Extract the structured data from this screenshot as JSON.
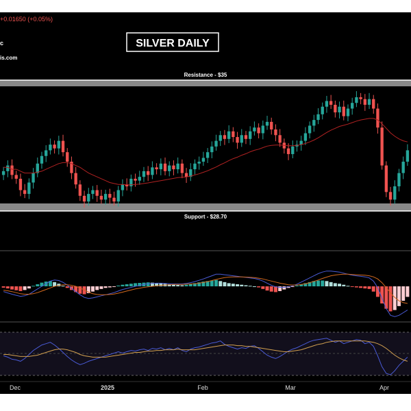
{
  "header": {
    "price_change": "+0.01650 (+0.05%)",
    "line2": "c",
    "line3": "is.com"
  },
  "title": "SILVER DAILY",
  "colors": {
    "background": "#000000",
    "up": "#26a69a",
    "down": "#ef5350",
    "zone": "#888888",
    "level_line": "#ffffff",
    "ma": "#b22222",
    "macd_line": "#4a5bd6",
    "signal_line": "#d2691e",
    "rsi": "#4a5bd6",
    "rsi_ma": "#d2a050"
  },
  "chart_data": {
    "type": "candlestick",
    "levels": [
      {
        "label": "Resistance - $35",
        "value": 35
      },
      {
        "label": "Support - $28.70",
        "value": 28.7
      }
    ],
    "price_range": [
      28.4,
      35.3
    ],
    "x_labels": [
      "Dec",
      "2025",
      "Feb",
      "Mar",
      "Apr"
    ],
    "closes": [
      30.5,
      30.8,
      30.3,
      30.1,
      29.5,
      29.3,
      29.9,
      30.4,
      30.9,
      31.3,
      31.6,
      31.9,
      31.7,
      32.1,
      31.5,
      31.0,
      30.4,
      29.8,
      29.2,
      28.9,
      29.3,
      29.5,
      29.2,
      29.0,
      29.3,
      29.1,
      28.9,
      29.5,
      29.8,
      29.7,
      30.1,
      30.0,
      30.2,
      30.5,
      30.3,
      30.7,
      30.6,
      30.9,
      30.5,
      30.8,
      30.6,
      30.9,
      30.4,
      30.2,
      30.6,
      30.9,
      31.0,
      31.2,
      31.5,
      31.8,
      32.1,
      32.4,
      32.2,
      32.6,
      32.3,
      32.0,
      32.4,
      32.2,
      32.6,
      32.8,
      32.5,
      32.9,
      33.1,
      32.7,
      32.4,
      32.0,
      31.7,
      31.4,
      31.8,
      31.9,
      32.1,
      32.5,
      32.9,
      33.2,
      33.5,
      33.9,
      34.2,
      34.0,
      33.6,
      33.9,
      33.4,
      33.8,
      34.1,
      34.4,
      34.3,
      34.0,
      34.3,
      33.8,
      32.8,
      30.8,
      29.4,
      29.0,
      29.7,
      30.4,
      31.0,
      31.6
    ],
    "ma_closes": [
      30.7,
      30.7,
      30.6,
      30.6,
      30.5,
      30.4,
      30.4,
      30.4,
      30.45,
      30.5,
      30.6,
      30.7,
      30.8,
      30.9,
      30.95,
      30.95,
      30.9,
      30.8,
      30.7,
      30.55,
      30.4,
      30.3,
      30.2,
      30.1,
      30.0,
      29.9,
      29.85,
      29.8,
      29.8,
      29.78,
      29.78,
      29.8,
      29.82,
      29.85,
      29.88,
      29.92,
      29.96,
      30.0,
      30.04,
      30.08,
      30.12,
      30.16,
      30.18,
      30.2,
      30.24,
      30.3,
      30.36,
      30.44,
      30.52,
      30.62,
      30.72,
      30.84,
      30.94,
      31.06,
      31.16,
      31.24,
      31.34,
      31.42,
      31.52,
      31.6,
      31.66,
      31.74,
      31.82,
      31.86,
      31.88,
      31.88,
      31.86,
      31.84,
      31.84,
      31.86,
      31.9,
      31.96,
      32.04,
      32.14,
      32.26,
      32.4,
      32.54,
      32.66,
      32.76,
      32.86,
      32.92,
      32.98,
      33.06,
      33.14,
      33.2,
      33.24,
      33.28,
      33.28,
      33.2,
      33.0,
      32.76,
      32.52,
      32.34,
      32.2,
      32.1,
      32.04
    ],
    "macd_histogram": [
      -0.05,
      -0.08,
      -0.12,
      -0.15,
      -0.18,
      -0.14,
      -0.08,
      0.02,
      0.08,
      0.14,
      0.18,
      0.2,
      0.16,
      0.1,
      0.02,
      -0.06,
      -0.14,
      -0.22,
      -0.28,
      -0.3,
      -0.26,
      -0.2,
      -0.14,
      -0.1,
      -0.06,
      -0.04,
      -0.02,
      0.03,
      0.06,
      0.08,
      0.1,
      0.12,
      0.13,
      0.14,
      0.15,
      0.14,
      0.13,
      0.12,
      0.1,
      0.08,
      0.06,
      0.05,
      0.04,
      0.06,
      0.09,
      0.12,
      0.15,
      0.18,
      0.2,
      0.22,
      0.24,
      0.2,
      0.16,
      0.12,
      0.1,
      0.08,
      0.06,
      0.04,
      0.02,
      0.0,
      -0.04,
      -0.1,
      -0.16,
      -0.2,
      -0.22,
      -0.18,
      -0.12,
      -0.06,
      -0.02,
      0.03,
      0.08,
      0.12,
      0.16,
      0.2,
      0.22,
      0.22,
      0.2,
      0.16,
      0.12,
      0.1,
      0.06,
      0.02,
      -0.02,
      -0.04,
      -0.06,
      -0.08,
      -0.1,
      -0.2,
      -0.4,
      -0.65,
      -0.85,
      -0.95,
      -0.9,
      -0.75,
      -0.55,
      -0.4
    ],
    "macd_line": [
      -0.2,
      -0.25,
      -0.3,
      -0.34,
      -0.38,
      -0.36,
      -0.3,
      -0.2,
      -0.1,
      0.0,
      0.1,
      0.2,
      0.24,
      0.22,
      0.15,
      0.05,
      -0.08,
      -0.2,
      -0.32,
      -0.42,
      -0.46,
      -0.44,
      -0.4,
      -0.36,
      -0.32,
      -0.28,
      -0.24,
      -0.18,
      -0.12,
      -0.08,
      -0.04,
      0.0,
      0.04,
      0.07,
      0.1,
      0.11,
      0.12,
      0.12,
      0.11,
      0.1,
      0.09,
      0.09,
      0.09,
      0.11,
      0.14,
      0.18,
      0.23,
      0.28,
      0.34,
      0.4,
      0.46,
      0.46,
      0.44,
      0.42,
      0.4,
      0.38,
      0.36,
      0.34,
      0.32,
      0.3,
      0.26,
      0.2,
      0.12,
      0.04,
      -0.02,
      -0.04,
      -0.04,
      -0.02,
      0.02,
      0.08,
      0.16,
      0.24,
      0.32,
      0.4,
      0.48,
      0.54,
      0.58,
      0.58,
      0.56,
      0.54,
      0.5,
      0.46,
      0.42,
      0.4,
      0.38,
      0.36,
      0.32,
      0.2,
      -0.05,
      -0.45,
      -0.85,
      -1.1,
      -1.15,
      -1.1,
      -1.0,
      -0.9
    ],
    "signal_line": [
      -0.15,
      -0.17,
      -0.2,
      -0.24,
      -0.28,
      -0.3,
      -0.3,
      -0.28,
      -0.24,
      -0.18,
      -0.12,
      -0.06,
      0.0,
      0.04,
      0.06,
      0.06,
      0.04,
      0.0,
      -0.06,
      -0.14,
      -0.22,
      -0.28,
      -0.31,
      -0.32,
      -0.32,
      -0.31,
      -0.29,
      -0.26,
      -0.22,
      -0.18,
      -0.14,
      -0.1,
      -0.07,
      -0.04,
      -0.02,
      0.0,
      0.02,
      0.04,
      0.05,
      0.06,
      0.07,
      0.07,
      0.07,
      0.08,
      0.09,
      0.1,
      0.12,
      0.15,
      0.18,
      0.22,
      0.26,
      0.3,
      0.33,
      0.35,
      0.36,
      0.36,
      0.36,
      0.35,
      0.34,
      0.33,
      0.31,
      0.28,
      0.24,
      0.2,
      0.16,
      0.12,
      0.09,
      0.06,
      0.05,
      0.05,
      0.07,
      0.1,
      0.14,
      0.19,
      0.24,
      0.3,
      0.35,
      0.4,
      0.43,
      0.45,
      0.46,
      0.46,
      0.45,
      0.44,
      0.43,
      0.42,
      0.4,
      0.36,
      0.28,
      0.14,
      -0.05,
      -0.25,
      -0.42,
      -0.55,
      -0.62,
      -0.65
    ],
    "rsi": [
      46,
      44,
      41,
      40,
      38,
      42,
      48,
      54,
      58,
      62,
      64,
      66,
      62,
      57,
      51,
      45,
      40,
      36,
      33,
      35,
      38,
      40,
      42,
      44,
      46,
      48,
      50,
      52,
      50,
      52,
      54,
      53,
      55,
      56,
      54,
      57,
      56,
      58,
      55,
      57,
      55,
      58,
      54,
      52,
      56,
      58,
      59,
      61,
      63,
      65,
      66,
      68,
      63,
      60,
      58,
      56,
      58,
      57,
      60,
      61,
      57,
      52,
      47,
      44,
      42,
      45,
      49,
      53,
      56,
      58,
      61,
      64,
      67,
      69,
      70,
      71,
      72,
      69,
      66,
      68,
      64,
      66,
      68,
      70,
      69,
      64,
      66,
      60,
      46,
      30,
      20,
      18,
      24,
      32,
      38,
      44
    ],
    "rsi_ma": [
      48,
      48,
      47,
      46,
      45,
      45,
      45,
      46,
      47,
      49,
      51,
      53,
      55,
      56,
      56,
      55,
      53,
      51,
      48,
      46,
      45,
      44,
      44,
      44,
      44,
      45,
      46,
      47,
      48,
      49,
      50,
      51,
      51,
      52,
      53,
      53,
      54,
      54,
      55,
      55,
      55,
      56,
      55,
      55,
      55,
      55,
      56,
      57,
      58,
      59,
      60,
      61,
      62,
      62,
      62,
      61,
      61,
      60,
      60,
      59,
      58,
      57,
      56,
      55,
      54,
      53,
      52,
      52,
      53,
      54,
      55,
      57,
      59,
      61,
      63,
      64,
      66,
      67,
      68,
      68,
      68,
      68,
      68,
      68,
      68,
      68,
      67,
      66,
      64,
      61,
      57,
      52,
      47,
      43,
      40,
      38
    ]
  }
}
